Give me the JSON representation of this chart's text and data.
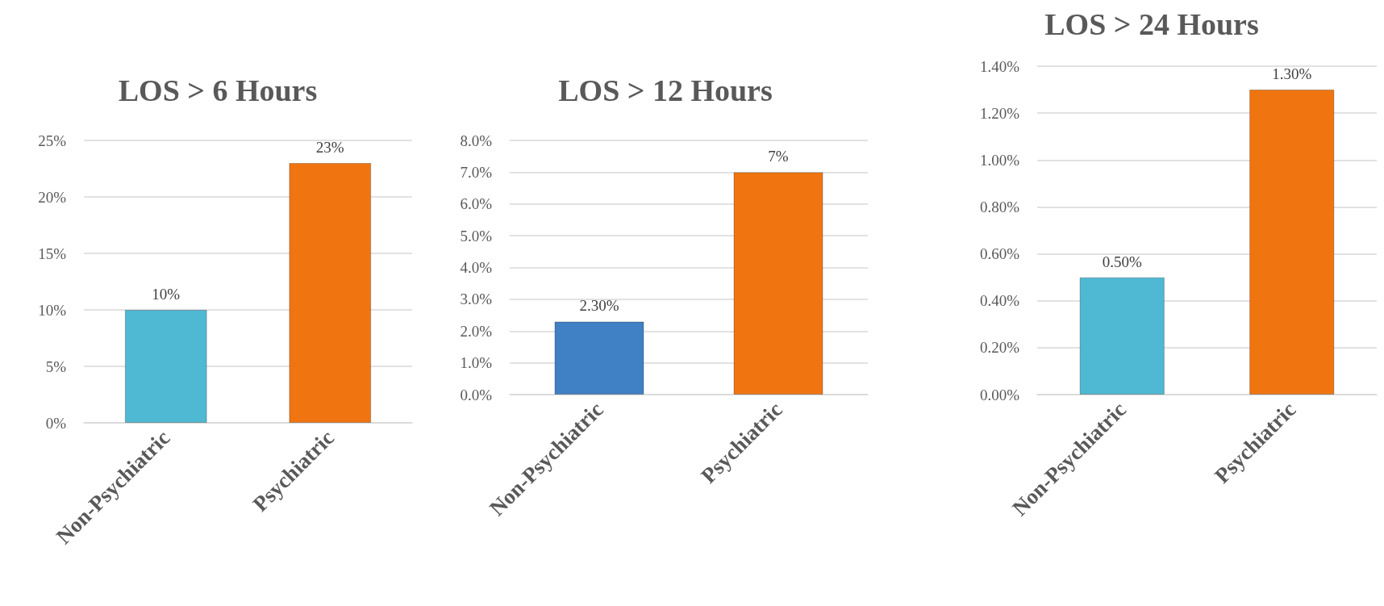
{
  "chart_data": [
    {
      "type": "bar",
      "title": "LOS > 6 Hours",
      "categories": [
        "Non-Psychiatric",
        "Psychiatric"
      ],
      "values": [
        10,
        23
      ],
      "colors": [
        "#4fb8d2",
        "#f07510"
      ],
      "value_labels": [
        "10%",
        "23%"
      ],
      "ylim": [
        0,
        25
      ],
      "yticks": [
        {
          "value": 0,
          "label": "0%"
        },
        {
          "value": 5,
          "label": "5%"
        },
        {
          "value": 10,
          "label": "10%"
        },
        {
          "value": 15,
          "label": "15%"
        },
        {
          "value": 20,
          "label": "20%"
        },
        {
          "value": 25,
          "label": "25%"
        }
      ],
      "grid": "y"
    },
    {
      "type": "bar",
      "title": "LOS > 12 Hours",
      "categories": [
        "Non-Psychiatric",
        "Psychiatric"
      ],
      "values": [
        2.3,
        7
      ],
      "colors": [
        "#4080c4",
        "#f07510"
      ],
      "value_labels": [
        "2.30%",
        "7%"
      ],
      "ylim": [
        0,
        8
      ],
      "yticks": [
        {
          "value": 0,
          "label": "0.0%"
        },
        {
          "value": 1,
          "label": "1.0%"
        },
        {
          "value": 2,
          "label": "2.0%"
        },
        {
          "value": 3,
          "label": "3.0%"
        },
        {
          "value": 4,
          "label": "4.0%"
        },
        {
          "value": 5,
          "label": "5.0%"
        },
        {
          "value": 6,
          "label": "6.0%"
        },
        {
          "value": 7,
          "label": "7.0%"
        },
        {
          "value": 8,
          "label": "8.0%"
        }
      ],
      "grid": "y"
    },
    {
      "type": "bar",
      "title": "LOS > 24 Hours",
      "categories": [
        "Non-Psychiatric",
        "Psychiatric"
      ],
      "values": [
        0.5,
        1.3
      ],
      "colors": [
        "#4fb8d2",
        "#f07510"
      ],
      "value_labels": [
        "0.50%",
        "1.30%"
      ],
      "ylim": [
        0,
        1.4
      ],
      "yticks": [
        {
          "value": 0,
          "label": "0.00%"
        },
        {
          "value": 0.2,
          "label": "0.20%"
        },
        {
          "value": 0.4,
          "label": "0.40%"
        },
        {
          "value": 0.6,
          "label": "0.60%"
        },
        {
          "value": 0.8,
          "label": "0.80%"
        },
        {
          "value": 1,
          "label": "1.00%"
        },
        {
          "value": 1.2,
          "label": "1.20%"
        },
        {
          "value": 1.4,
          "label": "1.40%"
        }
      ],
      "grid": "y"
    }
  ]
}
